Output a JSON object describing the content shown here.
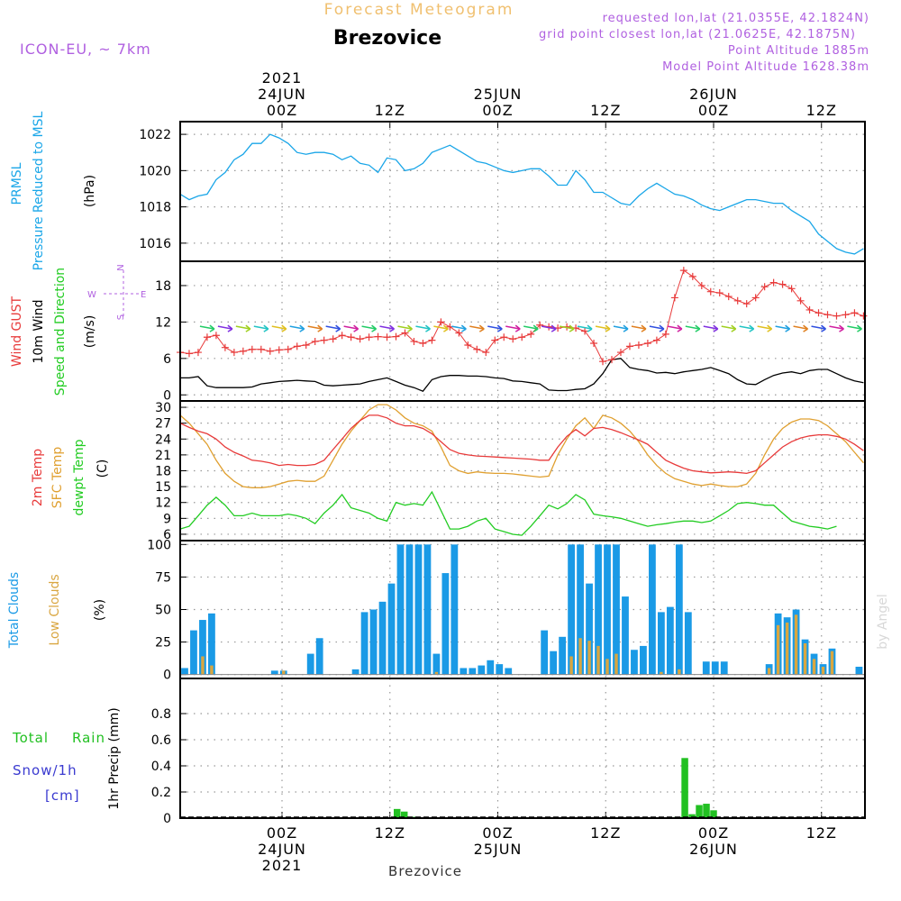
{
  "header": {
    "title_top": "Forecast Meteogram",
    "location": "Brezovice",
    "model": "ICON-EU, ~ 7km",
    "requested": "requested lon,lat (21.0355E, 42.1824N)",
    "gridpoint": "grid point closest lon,lat (21.0625E, 42.1875N)",
    "point_alt": "Point Altitude 1885m",
    "model_alt": "Model Point Altitude 1628.38m",
    "footer_location": "Brezovice",
    "credit": "by Angel"
  },
  "colors": {
    "prmsl": "#1aa6e8",
    "gust": "#e83a3a",
    "wind": "#000000",
    "t2m": "#e83a3a",
    "sfc": "#e0a030",
    "dew": "#22cc22",
    "total_clouds": "#1a9ae6",
    "low_clouds": "#d9a640",
    "rain": "#22c022",
    "snow": "#3a3ad0",
    "title": "#f0c070",
    "purple": "#b060e0"
  },
  "time_axis": {
    "hours": 77,
    "top_labels": [
      {
        "h": 0,
        "lines": [
          "2021",
          "24JUN",
          "00Z"
        ]
      },
      {
        "h": 12,
        "lines": [
          "",
          "",
          "12Z"
        ]
      },
      {
        "h": 24,
        "lines": [
          "",
          "25JUN",
          "00Z"
        ]
      },
      {
        "h": 36,
        "lines": [
          "",
          "",
          "12Z"
        ]
      },
      {
        "h": 48,
        "lines": [
          "",
          "26JUN",
          "00Z"
        ]
      },
      {
        "h": 60,
        "lines": [
          "",
          "",
          "12Z"
        ]
      }
    ],
    "bottom_labels": [
      {
        "h": 0,
        "lines": [
          "00Z",
          "24JUN",
          "2021"
        ]
      },
      {
        "h": 12,
        "lines": [
          "12Z",
          "",
          ""
        ]
      },
      {
        "h": 24,
        "lines": [
          "00Z",
          "25JUN",
          ""
        ]
      },
      {
        "h": 36,
        "lines": [
          "12Z",
          "",
          ""
        ]
      },
      {
        "h": 48,
        "lines": [
          "00Z",
          "26JUN",
          ""
        ]
      },
      {
        "h": 60,
        "lines": [
          "12Z",
          "",
          ""
        ]
      }
    ]
  },
  "chart_data": [
    {
      "id": "pressure",
      "type": "line",
      "label_lines": [
        "PRMSL",
        "Pressure Reduced to MSL"
      ],
      "unit": "(hPa)",
      "ylim": [
        1015,
        1022.7
      ],
      "yticks": [
        1016,
        1018,
        1020,
        1022
      ],
      "values": [
        1018.7,
        1018.4,
        1018.6,
        1018.7,
        1019.5,
        1019.9,
        1020.6,
        1020.9,
        1021.5,
        1021.5,
        1022.0,
        1021.8,
        1021.5,
        1021.0,
        1020.9,
        1021.0,
        1021.0,
        1020.9,
        1020.6,
        1020.8,
        1020.4,
        1020.3,
        1019.9,
        1020.7,
        1020.6,
        1020.0,
        1020.1,
        1020.4,
        1021.0,
        1021.2,
        1021.4,
        1021.1,
        1020.8,
        1020.5,
        1020.4,
        1020.2,
        1020.0,
        1019.9,
        1020.0,
        1020.1,
        1020.1,
        1019.7,
        1019.2,
        1019.2,
        1020.0,
        1019.5,
        1018.8,
        1018.8,
        1018.5,
        1018.2,
        1018.1,
        1018.6,
        1019.0,
        1019.3,
        1019.0,
        1018.7,
        1018.6,
        1018.4,
        1018.1,
        1017.9,
        1017.8,
        1018.0,
        1018.2,
        1018.4,
        1018.4,
        1018.3,
        1018.2,
        1018.2,
        1017.8,
        1017.5,
        1017.2,
        1016.5,
        1016.1,
        1015.7,
        1015.5,
        1015.4,
        1015.7
      ]
    },
    {
      "id": "wind",
      "type": "line",
      "label_lines": [
        "Wind GUST",
        "10m Wind",
        "Speed and Direction"
      ],
      "unit": "(m/s)",
      "compass": [
        "W",
        "E",
        "N",
        "S"
      ],
      "ylim": [
        -1,
        22
      ],
      "yticks": [
        0,
        6,
        12,
        18
      ],
      "gust": [
        7.0,
        6.8,
        7.0,
        9.5,
        9.8,
        7.8,
        7.0,
        7.2,
        7.5,
        7.5,
        7.2,
        7.4,
        7.5,
        8.0,
        8.2,
        8.8,
        9.0,
        9.2,
        9.8,
        9.5,
        9.2,
        9.5,
        9.6,
        9.5,
        9.6,
        10.2,
        8.8,
        8.5,
        9.0,
        12.0,
        11.2,
        10.2,
        8.2,
        7.5,
        7.0,
        9.0,
        9.5,
        9.2,
        9.5,
        10.0,
        11.5,
        11.2,
        11.0,
        11.2,
        11.0,
        10.5,
        8.5,
        5.5,
        5.8,
        7.0,
        8.0,
        8.2,
        8.5,
        9.0,
        10.0,
        16.0,
        20.5,
        19.5,
        18.0,
        17.0,
        16.8,
        16.2,
        15.5,
        15.0,
        16.0,
        17.8,
        18.5,
        18.2,
        17.5,
        15.5,
        14.0,
        13.5,
        13.2,
        13.0,
        13.2,
        13.5,
        13.0
      ],
      "speed": [
        2.8,
        2.8,
        3.0,
        1.5,
        1.2,
        1.2,
        1.2,
        1.2,
        1.3,
        1.8,
        2.0,
        2.2,
        2.3,
        2.4,
        2.3,
        2.2,
        1.6,
        1.5,
        1.6,
        1.7,
        1.8,
        2.2,
        2.5,
        2.8,
        2.2,
        1.6,
        1.2,
        0.6,
        2.5,
        3.0,
        3.2,
        3.2,
        3.1,
        3.1,
        3.0,
        2.8,
        2.7,
        2.3,
        2.2,
        2.0,
        1.8,
        0.8,
        0.7,
        0.7,
        0.9,
        1.0,
        1.8,
        3.5,
        5.8,
        6.0,
        4.5,
        4.2,
        4.0,
        3.6,
        3.7,
        3.5,
        3.8,
        4.0,
        4.2,
        4.5,
        4.0,
        3.5,
        2.5,
        1.8,
        1.7,
        2.5,
        3.2,
        3.6,
        3.8,
        3.5,
        4.0,
        4.2,
        4.2,
        3.5,
        2.8,
        2.3,
        2.0
      ]
    },
    {
      "id": "temperature",
      "type": "line",
      "label_lines": [
        "2m Temp",
        "SFC Temp",
        "dewpt Temp"
      ],
      "unit": "(C)",
      "ylim": [
        4.8,
        31.2
      ],
      "yticks": [
        6,
        9,
        12,
        15,
        18,
        21,
        24,
        27,
        30
      ],
      "t2m": [
        27.0,
        26.2,
        25.5,
        25.0,
        24.0,
        22.5,
        21.5,
        20.8,
        20.0,
        19.8,
        19.5,
        19.0,
        19.2,
        19.0,
        19.0,
        19.2,
        20.0,
        22.0,
        24.0,
        26.0,
        27.5,
        28.5,
        28.5,
        28.0,
        27.0,
        26.5,
        26.5,
        26.0,
        25.0,
        23.5,
        22.0,
        21.3,
        21.0,
        20.8,
        20.7,
        20.6,
        20.5,
        20.4,
        20.3,
        20.2,
        20.0,
        20.0,
        22.5,
        24.5,
        25.8,
        24.6,
        26.0,
        26.2,
        25.8,
        25.2,
        24.5,
        23.8,
        23.0,
        21.5,
        20.0,
        19.2,
        18.5,
        18.0,
        17.8,
        17.6,
        17.7,
        17.8,
        17.7,
        17.5,
        18.0,
        19.5,
        21.0,
        22.5,
        23.5,
        24.2,
        24.6,
        24.8,
        24.8,
        24.5,
        24.0,
        23.0,
        21.8
      ],
      "sfc": [
        28.5,
        27.0,
        25.0,
        23.0,
        20.0,
        17.5,
        16.0,
        15.0,
        14.8,
        14.8,
        15.0,
        15.5,
        16.0,
        16.2,
        16.0,
        16.0,
        17.0,
        20.0,
        23.0,
        25.5,
        27.5,
        29.5,
        30.5,
        30.5,
        29.5,
        28.0,
        27.0,
        26.5,
        25.5,
        22.5,
        19.0,
        18.0,
        17.5,
        17.8,
        17.6,
        17.5,
        17.5,
        17.4,
        17.2,
        17.0,
        16.8,
        17.0,
        21.0,
        24.0,
        26.5,
        28.0,
        26.0,
        28.5,
        28.0,
        27.0,
        25.5,
        23.5,
        21.0,
        19.0,
        17.5,
        16.5,
        16.0,
        15.5,
        15.2,
        15.5,
        15.2,
        15.0,
        15.0,
        15.5,
        17.5,
        21.0,
        24.0,
        26.0,
        27.2,
        27.8,
        27.8,
        27.5,
        26.5,
        25.0,
        23.5,
        21.5,
        19.5
      ],
      "dew": [
        7.0,
        7.5,
        9.5,
        11.5,
        13.0,
        11.5,
        9.5,
        9.5,
        10.0,
        9.5,
        9.5,
        9.5,
        9.8,
        9.5,
        9.0,
        8.0,
        10.0,
        11.5,
        13.5,
        11.0,
        10.5,
        10.0,
        9.0,
        8.5,
        12.0,
        11.5,
        11.8,
        11.5,
        14.0,
        10.5,
        7.0,
        7.0,
        7.5,
        8.5,
        9.0,
        7.0,
        6.5,
        6.0,
        5.8,
        7.5,
        9.5,
        11.5,
        10.8,
        11.8,
        13.5,
        12.5,
        9.8,
        9.5,
        9.3,
        9.0,
        8.5,
        8.0,
        7.5,
        7.8,
        8.0,
        8.3,
        8.5,
        8.5,
        8.2,
        8.5,
        9.5,
        10.5,
        11.8,
        12.0,
        11.8,
        11.5,
        11.5,
        10.0,
        8.5,
        8.0,
        7.5,
        7.3,
        7.0,
        7.5
      ],
      "dew_start_hour": 0
    },
    {
      "id": "clouds",
      "type": "bar",
      "label_lines": [
        "Total Clouds",
        "Low Clouds"
      ],
      "unit": "(%)",
      "ylim": [
        -3,
        103
      ],
      "yticks": [
        0,
        25,
        50,
        75,
        100
      ],
      "total": [
        5,
        34,
        42,
        47,
        0,
        0,
        0,
        0,
        0,
        0,
        3,
        3,
        0,
        0,
        16,
        28,
        0,
        0,
        0,
        4,
        48,
        50,
        56,
        70,
        100,
        100,
        100,
        100,
        16,
        78,
        100,
        5,
        5,
        7,
        11,
        8,
        5,
        0,
        0,
        0,
        34,
        18,
        29,
        100,
        100,
        70,
        100,
        100,
        100,
        60,
        19,
        22,
        100,
        48,
        52,
        100,
        48,
        0,
        10,
        10,
        10,
        0,
        0,
        0,
        0,
        8,
        47,
        44,
        50,
        27,
        16,
        8,
        20,
        0,
        0,
        6
      ],
      "low": [
        0,
        0,
        14,
        7,
        0,
        0,
        0,
        0,
        0,
        0,
        0,
        3,
        0,
        0,
        0,
        0,
        0,
        0,
        0,
        0,
        0,
        0,
        0,
        0,
        0,
        0,
        0,
        0,
        2,
        0,
        0,
        0,
        0,
        0,
        0,
        0,
        0,
        0,
        0,
        0,
        0,
        0,
        0,
        14,
        28,
        26,
        22,
        12,
        16,
        0,
        0,
        0,
        0,
        2,
        0,
        4,
        0,
        0,
        0,
        0,
        0,
        0,
        0,
        0,
        0,
        5,
        38,
        40,
        46,
        24,
        12,
        6,
        18,
        0,
        0,
        0
      ],
      "bar_start_hour": -11
    },
    {
      "id": "precip",
      "type": "bar",
      "label_lines": [
        "Total",
        "Rain",
        "Snow/1h",
        "[cm]"
      ],
      "axis_label": "1hr Precip (mm)",
      "ylim": [
        0,
        1.0
      ],
      "yticks": [
        0,
        0.2,
        0.4,
        0.6,
        0.8
      ],
      "bars": [
        {
          "h": 12.8,
          "v": 0.07
        },
        {
          "h": 13.6,
          "v": 0.05
        },
        {
          "h": 14.5,
          "v": 0.01
        },
        {
          "h": 44.0,
          "v": 0.01
        },
        {
          "h": 44.8,
          "v": 0.46
        },
        {
          "h": 45.6,
          "v": 0.03
        },
        {
          "h": 46.4,
          "v": 0.1
        },
        {
          "h": 47.2,
          "v": 0.11
        },
        {
          "h": 48.0,
          "v": 0.06
        }
      ]
    }
  ]
}
